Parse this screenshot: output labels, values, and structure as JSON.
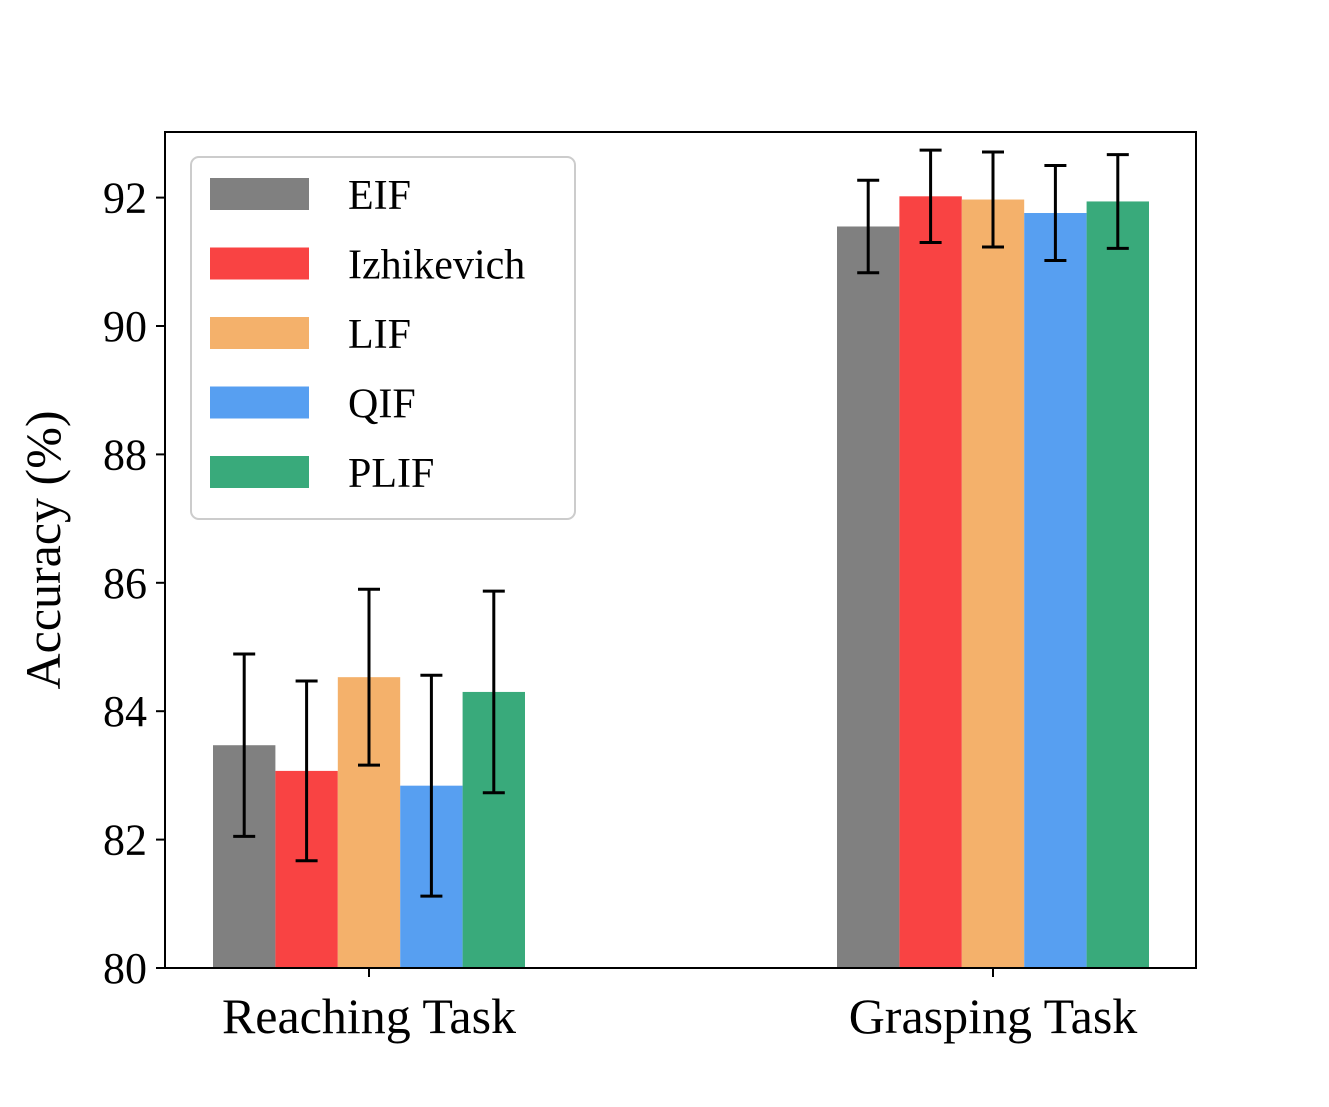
{
  "chart_data": {
    "type": "bar",
    "title": "",
    "xlabel": "",
    "ylabel": "Accuracy (%)",
    "ylim": [
      80,
      93
    ],
    "yticks": [
      "80",
      "82",
      "84",
      "86",
      "88",
      "90",
      "92"
    ],
    "categories": [
      "Reaching Task",
      "Grasping Task"
    ],
    "legend_position": "top-left",
    "series": [
      {
        "name": "EIF",
        "color": "#808080",
        "values": [
          83.47,
          91.55
        ],
        "errors": [
          1.42,
          0.72
        ]
      },
      {
        "name": "Izhikevich",
        "color": "#f94343",
        "values": [
          83.07,
          92.02
        ],
        "errors": [
          1.4,
          0.72
        ]
      },
      {
        "name": "LIF",
        "color": "#f4b16b",
        "values": [
          84.53,
          91.97
        ],
        "errors": [
          1.37,
          0.74
        ]
      },
      {
        "name": "QIF",
        "color": "#579ff1",
        "values": [
          82.84,
          91.76
        ],
        "errors": [
          1.72,
          0.74
        ]
      },
      {
        "name": "PLIF",
        "color": "#39aa7b",
        "values": [
          84.3,
          91.94
        ],
        "errors": [
          1.57,
          0.73
        ]
      }
    ]
  }
}
